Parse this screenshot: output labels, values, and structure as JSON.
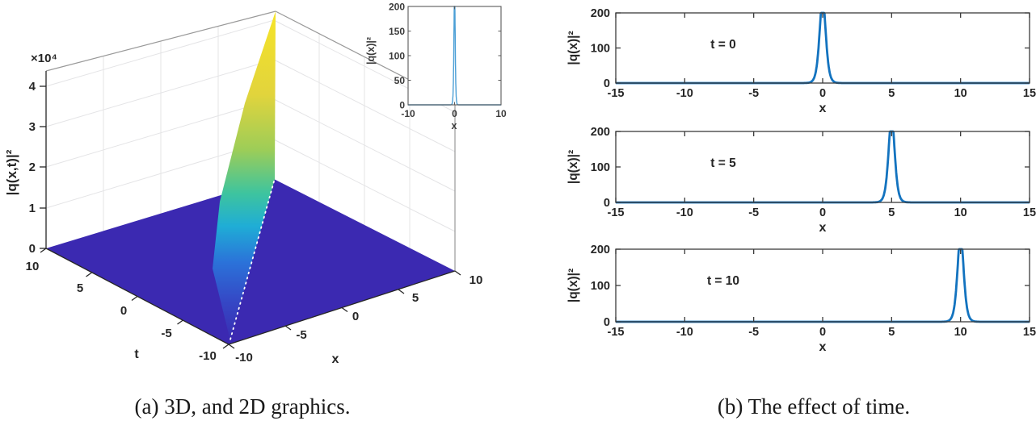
{
  "figure": {
    "type": "scientific-figure",
    "background": "#ffffff"
  },
  "panel_a": {
    "caption": "(a) 3D, and 2D graphics.",
    "z_exponent": "×10⁴",
    "z_label": "|q(x,t)|²",
    "z_ticks": [
      "4",
      "3",
      "2",
      "1",
      "0"
    ],
    "t_label": "t",
    "t_ticks": [
      "10",
      "5",
      "0",
      "-5",
      "-10"
    ],
    "x_label": "x",
    "x_ticks": [
      "-10",
      "-5",
      "0",
      "5",
      "10"
    ],
    "inset": {
      "y_label": "|q(x)|²",
      "y_ticks": [
        "200",
        "150",
        "100",
        "50",
        "0"
      ],
      "x_label": "x",
      "x_ticks": [
        "-10",
        "0",
        "10"
      ]
    }
  },
  "panel_b": {
    "caption": "(b) The effect of time.",
    "y_label": "|q(x)|²",
    "x_label": "x",
    "y_ticks": [
      "200",
      "100",
      "0"
    ],
    "x_ticks": [
      "-15",
      "-10",
      "-5",
      "0",
      "5",
      "10",
      "15"
    ],
    "subplots": [
      {
        "annotation": "t = 0",
        "chart_index": 2
      },
      {
        "annotation": "t = 5",
        "chart_index": 3
      },
      {
        "annotation": "t = 10",
        "chart_index": 4
      }
    ]
  },
  "colors": {
    "matlab_blue": "#1373bf",
    "annotation_blue": "#1778c2",
    "inset_line": "#4b9fd6",
    "floor_indigo": "#3b29b1",
    "wall_top_yellow": "#f6e428",
    "axis_dark": "#262626"
  },
  "chart_data": [
    {
      "type": "surface",
      "xlabel": "x",
      "ylabel": "t",
      "zlabel": "|q(x,t)|²",
      "x_range": [
        -10,
        10
      ],
      "t_range": [
        -10,
        10
      ],
      "z_range": [
        0,
        40000
      ],
      "z_scale_note": "×10⁴",
      "x_ticks": [
        -10,
        -5,
        0,
        5,
        10
      ],
      "t_ticks": [
        -10,
        -5,
        0,
        5,
        10
      ],
      "z_ticks": [
        0,
        1,
        2,
        3,
        4
      ],
      "colormap": "parula",
      "description": "Flat near-zero surface with a sharp soliton wall along the diagonal x = t; wall height rises linearly to about 4×10⁴ at (x,t)=(10,10). White dotted line marks the ridge path on the floor."
    },
    {
      "type": "line",
      "role": "inset",
      "xlabel": "x",
      "ylabel": "|q(x)|²",
      "x_range": [
        -10,
        10
      ],
      "y_range": [
        0,
        200
      ],
      "x_ticks": [
        -10,
        0,
        10
      ],
      "y_ticks": [
        0,
        50,
        100,
        150,
        200
      ],
      "peak_center": 0,
      "peak_height": 200,
      "peak_width": 0.18,
      "clip_amplitude": 235
    },
    {
      "type": "line",
      "annotation": "t = 0",
      "xlabel": "x",
      "ylabel": "|q(x)|²",
      "x_range": [
        -15,
        15
      ],
      "y_range": [
        0,
        200
      ],
      "x_ticks": [
        -15,
        -10,
        -5,
        0,
        5,
        10,
        15
      ],
      "y_ticks": [
        0,
        100,
        200
      ],
      "peak_center": 0,
      "peak_height": 200,
      "peak_width": 0.3,
      "clip_amplitude": 240
    },
    {
      "type": "line",
      "annotation": "t = 5",
      "xlabel": "x",
      "ylabel": "|q(x)|²",
      "x_range": [
        -15,
        15
      ],
      "y_range": [
        0,
        200
      ],
      "x_ticks": [
        -15,
        -10,
        -5,
        0,
        5,
        10,
        15
      ],
      "y_ticks": [
        0,
        100,
        200
      ],
      "peak_center": 5,
      "peak_height": 200,
      "peak_width": 0.3,
      "clip_amplitude": 240
    },
    {
      "type": "line",
      "annotation": "t = 10",
      "xlabel": "x",
      "ylabel": "|q(x)|²",
      "x_range": [
        -15,
        15
      ],
      "y_range": [
        0,
        200
      ],
      "x_ticks": [
        -15,
        -10,
        -5,
        0,
        5,
        10,
        15
      ],
      "y_ticks": [
        0,
        100,
        200
      ],
      "peak_center": 10,
      "peak_height": 200,
      "peak_width": 0.3,
      "clip_amplitude": 240
    }
  ]
}
